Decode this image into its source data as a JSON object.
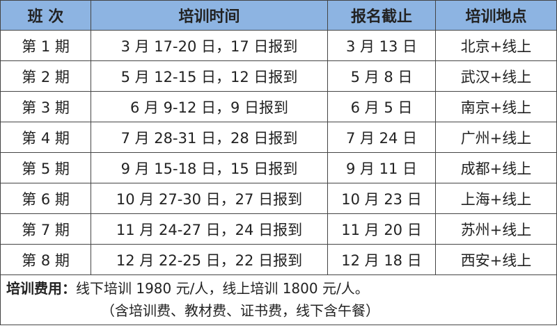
{
  "headers": [
    "班 次",
    "培训时间",
    "报名截止",
    "培训地点"
  ],
  "rows": [
    [
      "第 1 期",
      "3 月 17-20 日，17 日报到",
      "3 月 13 日",
      "北京+线上"
    ],
    [
      "第 2 期",
      "5 月 12-15 日，12 日报到",
      "5 月 8 日",
      "武汉+线上"
    ],
    [
      "第 3 期",
      "6 月 9-12 日，9 日报到",
      "6 月 5 日",
      "南京+线上"
    ],
    [
      "第 4 期",
      "7 月 28-31 日，28 日报到",
      "7 月 24 日",
      "广州+线上"
    ],
    [
      "第 5 期",
      "9 月 15-18 日，15 日报到",
      "9 月 11 日",
      "成都+线上"
    ],
    [
      "第 6 期",
      "10 月 27-30 日，27 日报到",
      "10 月 23 日",
      "上海+线上"
    ],
    [
      "第 7 期",
      "11 月 24-27 日，24 日报到",
      "11 月 20 日",
      "苏州+线上"
    ],
    [
      "第 8 期",
      "12 月 22-25 日，22 日报到",
      "12 月 18 日",
      "西安+线上"
    ]
  ],
  "footer": {
    "label": "培训费用：",
    "text": "线下培训 1980 元/人，线上培训 1800 元/人。",
    "note": "（含培训费、教材费、证书费，线下含午餐）"
  },
  "colors": {
    "header_bg": "#8DB4E2"
  }
}
